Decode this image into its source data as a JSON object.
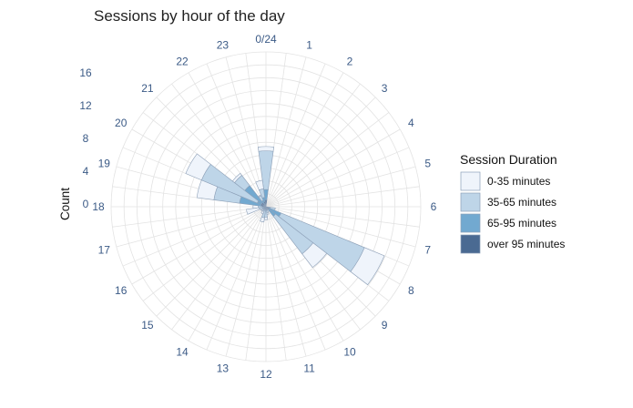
{
  "chart_data": {
    "type": "polar-stacked-bar",
    "title": "Sessions by hour of the day",
    "rlabel": "Count",
    "r_ticks": [
      0,
      4,
      8,
      12,
      16
    ],
    "rlim": [
      0,
      18
    ],
    "hour_labels": [
      "0/24",
      "1",
      "2",
      "3",
      "4",
      "5",
      "6",
      "7",
      "8",
      "9",
      "10",
      "11",
      "12",
      "13",
      "14",
      "15",
      "16",
      "17",
      "18",
      "19",
      "20",
      "21",
      "22",
      "23"
    ],
    "legend_title": "Session Duration",
    "legend_position": "right",
    "series": [
      {
        "name": "0-35 minutes",
        "color": "#eff4fb",
        "values": [
          0.5,
          0,
          0,
          0,
          0,
          0,
          0,
          0,
          2.5,
          2,
          0.2,
          0.2,
          0.3,
          0.5,
          0.3,
          0.2,
          0.2,
          1.5,
          0.6,
          2,
          2,
          0.3,
          0.1,
          1
        ]
      },
      {
        "name": "35-65 minutes",
        "color": "#bed5e8",
        "values": [
          4.5,
          0,
          0,
          0,
          0,
          0,
          0,
          0.6,
          10.5,
          5.5,
          0.2,
          0.5,
          0.8,
          1,
          0.4,
          0.3,
          0.3,
          0.6,
          0.5,
          3,
          7,
          1.5,
          0.6,
          1
        ]
      },
      {
        "name": "65-95 minutes",
        "color": "#72a9d0",
        "values": [
          1.2,
          0,
          0,
          0,
          0,
          0,
          0,
          0.3,
          1.5,
          1,
          0.1,
          0.1,
          0.3,
          0.2,
          0.1,
          0.1,
          0.1,
          0.1,
          0.2,
          2.5,
          0.5,
          2.5,
          0.5,
          0.5
        ]
      },
      {
        "name": "over 95 minutes",
        "color": "#4a6a92",
        "values": [
          0.8,
          0,
          0,
          0,
          0,
          0,
          0,
          0.2,
          0.4,
          0.4,
          0.1,
          0.1,
          0.1,
          0.1,
          0.1,
          0.05,
          0.1,
          0.1,
          0.2,
          0.6,
          0.6,
          0.6,
          0.3,
          0.6
        ]
      }
    ]
  }
}
